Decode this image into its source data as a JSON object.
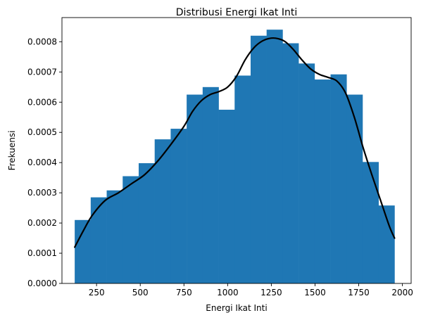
{
  "chart_data": {
    "type": "bar",
    "title": "Distribusi Energi Ikat Inti",
    "xlabel": "Energi Ikat Inti",
    "ylabel": "Frekuensi",
    "xlim": [
      52,
      2050
    ],
    "ylim": [
      0,
      0.00088
    ],
    "x_ticks": [
      250,
      500,
      750,
      1000,
      1250,
      1500,
      1750,
      2000
    ],
    "x_tick_labels": [
      "250",
      "500",
      "750",
      "1000",
      "1250",
      "1500",
      "1750",
      "2000"
    ],
    "y_ticks": [
      0,
      0.0001,
      0.0002,
      0.0003,
      0.0004,
      0.0005,
      0.0006,
      0.0007,
      0.0008
    ],
    "y_tick_labels": [
      "0.0000",
      "0.0001",
      "0.0002",
      "0.0003",
      "0.0004",
      "0.0005",
      "0.0006",
      "0.0007",
      "0.0008"
    ],
    "grid": false,
    "bar_color": "#1f77b4",
    "line_color": "#000000",
    "histogram": {
      "bin_edges": [
        125,
        216.5,
        308,
        399.5,
        491,
        582.5,
        674,
        765.5,
        857,
        948.5,
        1040,
        1131.5,
        1223,
        1314.5,
        1406,
        1497.5,
        1589,
        1680.5,
        1772,
        1863.5,
        1955
      ],
      "densities": [
        0.00021,
        0.000285,
        0.000308,
        0.000355,
        0.000398,
        0.000477,
        0.000512,
        0.000625,
        0.00065,
        0.000575,
        0.000688,
        0.00082,
        0.00084,
        0.000795,
        0.000728,
        0.000675,
        0.000692,
        0.000625,
        0.000402,
        0.000258
      ]
    },
    "density_curve": {
      "x": [
        125,
        175,
        225,
        300,
        375,
        450,
        525,
        600,
        675,
        750,
        800,
        850,
        900,
        950,
        1000,
        1050,
        1100,
        1150,
        1200,
        1250,
        1290,
        1330,
        1375,
        1425,
        1475,
        1525,
        1575,
        1625,
        1675,
        1725,
        1775,
        1825,
        1875,
        1925,
        1955
      ],
      "y": [
        0.00012,
        0.000175,
        0.000225,
        0.000275,
        0.0003,
        0.00033,
        0.00036,
        0.000405,
        0.00046,
        0.00052,
        0.00057,
        0.000605,
        0.000625,
        0.000635,
        0.00065,
        0.000685,
        0.00074,
        0.00078,
        0.000803,
        0.000812,
        0.00081,
        0.0008,
        0.000775,
        0.00074,
        0.00071,
        0.000692,
        0.000682,
        0.00067,
        0.00063,
        0.00055,
        0.00045,
        0.00036,
        0.000275,
        0.00019,
        0.00015
      ]
    }
  }
}
